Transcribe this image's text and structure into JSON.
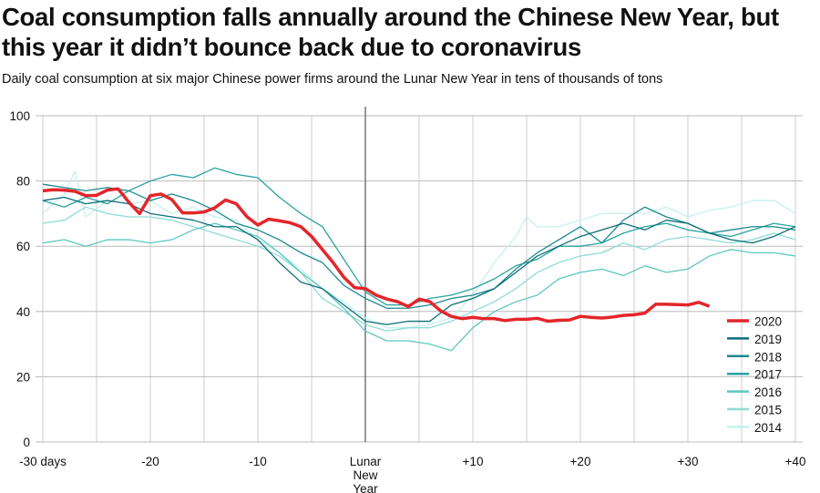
{
  "chart_data": {
    "type": "line",
    "title": "Coal consumption falls annually around the Chinese New Year, but this year it didn’t bounce back due to coronavirus",
    "subtitle": "Daily coal consumption at six major Chinese power firms around the Lunar New Year in tens of thousands of tons",
    "xlim": [
      -30,
      40
    ],
    "ylim": [
      0,
      100
    ],
    "grid": true,
    "legend_position": "bottom-right",
    "x_ticks": [
      {
        "value": -30,
        "label": "-30 days"
      },
      {
        "value": -20,
        "label": "-20"
      },
      {
        "value": -10,
        "label": "-10"
      },
      {
        "value": 0,
        "label": "Lunar New Year"
      },
      {
        "value": 10,
        "label": "+10"
      },
      {
        "value": 20,
        "label": "+20"
      },
      {
        "value": 30,
        "label": "+30"
      },
      {
        "value": 40,
        "label": "+40"
      }
    ],
    "y_ticks": [
      0,
      20,
      40,
      60,
      80,
      100
    ],
    "series": [
      {
        "name": "2014",
        "color": "#c4f2ee",
        "x": [
          -30,
          -28,
          -27,
          -26,
          -24,
          -22,
          -20,
          -18,
          -16,
          -14,
          -12,
          -10,
          -8,
          -6,
          -4,
          -2,
          0,
          2,
          4,
          6,
          8,
          10,
          12,
          14,
          15,
          16,
          18,
          20,
          22,
          24,
          26,
          28,
          30,
          32,
          34,
          36,
          38,
          40
        ],
        "y": [
          70,
          76,
          83,
          69,
          74,
          73,
          74,
          70,
          72,
          69,
          68,
          62,
          58,
          53,
          47,
          43,
          38,
          35,
          35,
          36,
          38,
          45,
          55,
          63,
          69,
          66,
          66,
          68,
          70,
          70,
          70,
          72,
          69,
          71,
          72,
          74,
          74,
          70
        ]
      },
      {
        "name": "2015",
        "color": "#8edcd5",
        "x": [
          -30,
          -28,
          -26,
          -24,
          -22,
          -20,
          -18,
          -16,
          -14,
          -12,
          -10,
          -8,
          -6,
          -4,
          -2,
          0,
          2,
          4,
          6,
          8,
          10,
          12,
          14,
          16,
          18,
          20,
          22,
          24,
          26,
          28,
          30,
          32,
          34,
          36,
          38,
          40
        ],
        "y": [
          67,
          68,
          72,
          70,
          69,
          69,
          68,
          66,
          64,
          62,
          60,
          57,
          52,
          44,
          40,
          36,
          34,
          35,
          35,
          37,
          40,
          43,
          47,
          52,
          55,
          57,
          58,
          61,
          59,
          62,
          63,
          62,
          61,
          62,
          64,
          62
        ]
      },
      {
        "name": "2016",
        "color": "#5cc7bd",
        "x": [
          -30,
          -28,
          -26,
          -24,
          -22,
          -20,
          -18,
          -16,
          -14,
          -12,
          -10,
          -8,
          -6,
          -4,
          -2,
          0,
          2,
          4,
          6,
          8,
          10,
          12,
          14,
          16,
          18,
          20,
          22,
          24,
          26,
          28,
          30,
          32,
          34,
          36,
          38,
          40
        ],
        "y": [
          61,
          62,
          60,
          62,
          62,
          61,
          62,
          65,
          67,
          65,
          63,
          58,
          52,
          47,
          41,
          34,
          31,
          31,
          30,
          28,
          35,
          40,
          43,
          45,
          50,
          52,
          53,
          51,
          54,
          52,
          53,
          57,
          59,
          58,
          58,
          57
        ]
      },
      {
        "name": "2017",
        "color": "#2aa39e",
        "x": [
          -30,
          -28,
          -26,
          -24,
          -22,
          -20,
          -18,
          -16,
          -14,
          -12,
          -10,
          -8,
          -6,
          -4,
          -2,
          0,
          2,
          4,
          6,
          8,
          10,
          12,
          14,
          16,
          18,
          20,
          22,
          24,
          26,
          28,
          30,
          32,
          34,
          36,
          38,
          40
        ],
        "y": [
          74,
          72,
          75,
          73,
          77,
          80,
          82,
          81,
          84,
          82,
          81,
          75,
          70,
          66,
          56,
          46,
          42,
          42,
          44,
          45,
          47,
          50,
          54,
          56,
          60,
          60,
          61,
          64,
          66,
          67,
          65,
          64,
          63,
          65,
          67,
          66
        ]
      },
      {
        "name": "2018",
        "color": "#1d8a8f",
        "x": [
          -30,
          -28,
          -26,
          -24,
          -22,
          -20,
          -18,
          -16,
          -14,
          -12,
          -10,
          -8,
          -6,
          -4,
          -2,
          0,
          2,
          4,
          6,
          8,
          10,
          12,
          14,
          16,
          18,
          20,
          22,
          24,
          26,
          28,
          30,
          32,
          34,
          36,
          38,
          40
        ],
        "y": [
          79,
          78,
          77,
          78,
          77,
          74,
          76,
          74,
          71,
          67,
          65,
          62,
          58,
          55,
          48,
          44,
          41,
          41,
          42,
          44,
          45,
          47,
          53,
          58,
          62,
          66,
          61,
          68,
          72,
          69,
          67,
          64,
          65,
          66,
          66,
          65
        ]
      },
      {
        "name": "2019",
        "color": "#0d6e78",
        "x": [
          -30,
          -28,
          -26,
          -24,
          -22,
          -20,
          -18,
          -16,
          -14,
          -12,
          -10,
          -8,
          -6,
          -4,
          -2,
          0,
          2,
          4,
          6,
          8,
          10,
          12,
          14,
          16,
          18,
          20,
          22,
          24,
          26,
          28,
          30,
          32,
          34,
          36,
          38,
          40
        ],
        "y": [
          74,
          75,
          73,
          74,
          73,
          70,
          69,
          68,
          66,
          66,
          62,
          55,
          49,
          47,
          42,
          37,
          36,
          37,
          37,
          42,
          44,
          47,
          52,
          57,
          60,
          63,
          65,
          67,
          65,
          68,
          67,
          64,
          62,
          61,
          63,
          66
        ]
      },
      {
        "name": "2020",
        "color": "#e3262b",
        "x": [
          -30,
          -29,
          -28,
          -27,
          -26,
          -25,
          -24,
          -23,
          -22,
          -21,
          -20,
          -19,
          -18,
          -17,
          -16,
          -15,
          -14,
          -13,
          -12,
          -11,
          -10,
          -9,
          -8,
          -7,
          -6,
          -5,
          -4,
          -3,
          -2,
          -1,
          0,
          1,
          2,
          3,
          4,
          5,
          6,
          7,
          8,
          9,
          10,
          11,
          12,
          13,
          14,
          15,
          16,
          17,
          18,
          19,
          20,
          21,
          22,
          23,
          24,
          25,
          26,
          27,
          28,
          29,
          30,
          31,
          32
        ],
        "y": [
          77,
          77.3,
          77.2,
          76.8,
          75.5,
          75.6,
          77.2,
          77.6,
          73.5,
          70,
          75.5,
          76,
          74.3,
          70.2,
          70.2,
          70.5,
          71.8,
          74.2,
          73,
          69,
          66.5,
          68.3,
          67.8,
          67.2,
          66,
          63,
          59,
          55,
          50.5,
          47.3,
          47,
          45,
          43.8,
          43,
          41.5,
          43.8,
          43,
          40.2,
          38.5,
          37.8,
          38.2,
          37.8,
          37.8,
          37.2,
          37.6,
          37.6,
          37.9,
          37,
          37.3,
          37.4,
          38.5,
          38.2,
          38,
          38.3,
          38.8,
          39,
          39.5,
          42.2,
          42.2,
          42.1,
          42,
          42.8,
          41.6
        ]
      }
    ]
  }
}
